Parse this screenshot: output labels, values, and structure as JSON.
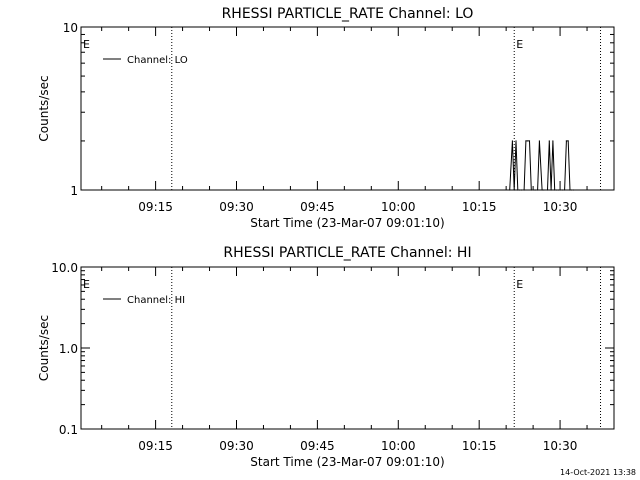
{
  "footer": {
    "timestamp": "14-Oct-2021 13:38"
  },
  "chart_data": [
    {
      "type": "line",
      "title": "RHESSI PARTICLE_RATE Channel: LO",
      "xlabel": "Start Time (23-Mar-07 09:01:10)",
      "ylabel": "Counts/sec",
      "y_scale": "log",
      "ylim": [
        1,
        10
      ],
      "y_ticks": [
        1,
        10
      ],
      "y_tick_labels": [
        "1",
        "10"
      ],
      "xlim": [
        "09:01:10",
        "10:40:00"
      ],
      "x_ticks": [
        "09:15",
        "09:30",
        "09:45",
        "10:00",
        "10:15",
        "10:30"
      ],
      "legend": {
        "entries": [
          "Channel: LO"
        ],
        "position": "upper-left"
      },
      "grid": false,
      "event_markers": [
        {
          "time": "09:01:10",
          "label": "E",
          "line": false
        },
        {
          "time": "09:18:00",
          "label": "",
          "line": true
        },
        {
          "time": "10:21:30",
          "label": "E",
          "line": true
        },
        {
          "time": "10:37:30",
          "label": "",
          "line": true
        }
      ],
      "series": [
        {
          "name": "Channel: LO",
          "x": [
            "10:20:40",
            "10:21:10",
            "10:21:30",
            "10:21:50",
            "10:22:10",
            "10:22:30",
            "10:22:50",
            "10:23:20",
            "10:23:40",
            "10:24:00",
            "10:24:20",
            "10:24:40",
            "10:25:10",
            "10:25:30",
            "10:25:50",
            "10:26:10",
            "10:26:40",
            "10:27:00",
            "10:27:40",
            "10:28:00",
            "10:28:20",
            "10:28:40",
            "10:29:00",
            "10:29:20",
            "10:29:40",
            "10:30:00",
            "10:30:30",
            "10:30:50",
            "10:31:10",
            "10:31:30",
            "10:31:50",
            "10:32:10",
            "10:32:30"
          ],
          "values": [
            1,
            2,
            1,
            2,
            1,
            1,
            1,
            1,
            2,
            2,
            2,
            1,
            1,
            1,
            1,
            2,
            1,
            1,
            1,
            2,
            1,
            2,
            1,
            1,
            1,
            1,
            1,
            1,
            2,
            2,
            1,
            1,
            1
          ]
        }
      ]
    },
    {
      "type": "line",
      "title": "RHESSI PARTICLE_RATE Channel: HI",
      "xlabel": "Start Time (23-Mar-07 09:01:10)",
      "ylabel": "Counts/sec",
      "y_scale": "log",
      "ylim": [
        0.1,
        10
      ],
      "y_ticks": [
        0.1,
        1,
        10
      ],
      "y_tick_labels": [
        "0.1",
        "1.0",
        "10.0"
      ],
      "xlim": [
        "09:01:10",
        "10:40:00"
      ],
      "x_ticks": [
        "09:15",
        "09:30",
        "09:45",
        "10:00",
        "10:15",
        "10:30"
      ],
      "legend": {
        "entries": [
          "Channel: HI"
        ],
        "position": "upper-left"
      },
      "grid": false,
      "event_markers": [
        {
          "time": "09:01:10",
          "label": "E",
          "line": false
        },
        {
          "time": "09:18:00",
          "label": "",
          "line": true
        },
        {
          "time": "10:21:30",
          "label": "E",
          "line": true
        },
        {
          "time": "10:37:30",
          "label": "",
          "line": true
        }
      ],
      "series": [
        {
          "name": "Channel: HI",
          "x": [],
          "values": []
        }
      ]
    }
  ]
}
